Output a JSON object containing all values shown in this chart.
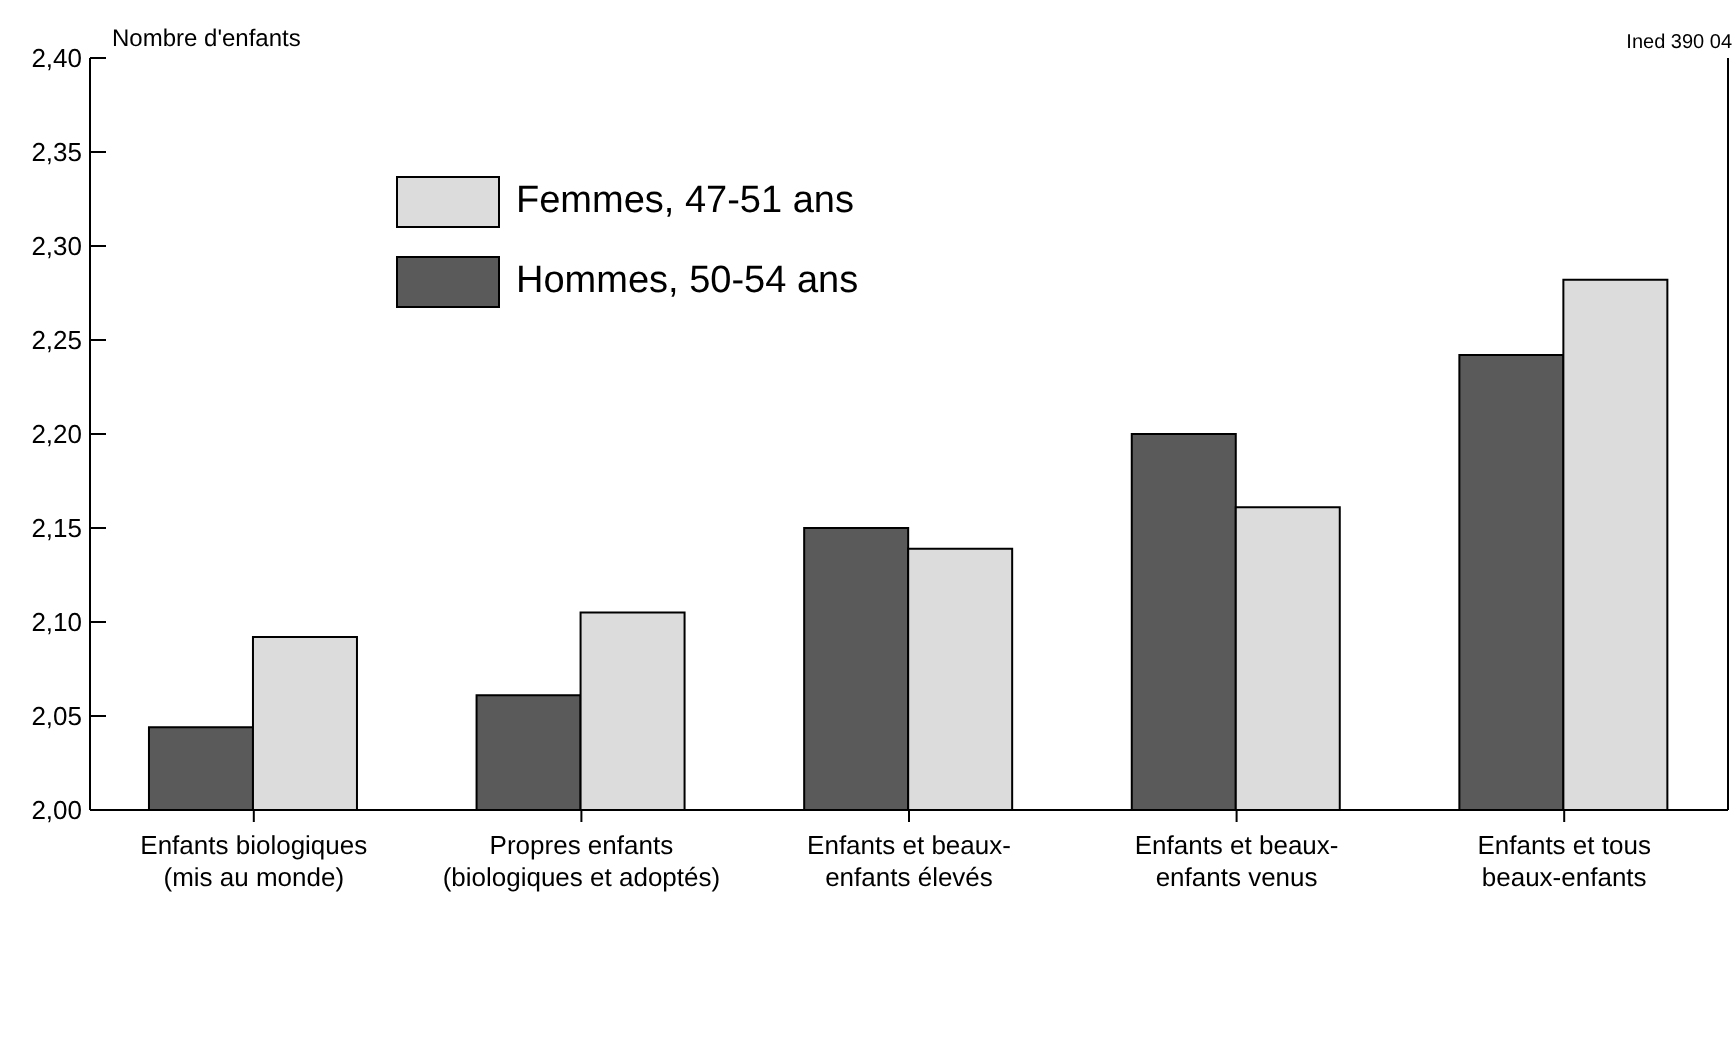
{
  "chart_data": {
    "type": "bar",
    "ylabel": "Nombre d'enfants",
    "annotations": [
      "Ined 390 04"
    ],
    "categories": [
      "Enfants biologiques\n(mis au monde)",
      "Propres enfants\n(biologiques et adoptés)",
      "Enfants et beaux-\nenfants élevés",
      "Enfants et beaux-\nenfants venus",
      "Enfants et tous\nbeaux-enfants"
    ],
    "series": [
      {
        "name": "Hommes, 50-54 ans",
        "color": "#5a5a5a",
        "values": [
          2.044,
          2.061,
          2.15,
          2.2,
          2.242
        ]
      },
      {
        "name": "Femmes, 47-51 ans",
        "color": "#dcdcdc",
        "values": [
          2.092,
          2.105,
          2.139,
          2.161,
          2.282
        ]
      }
    ],
    "ylim": [
      2,
      2.4
    ],
    "yticks": [
      {
        "value": 2,
        "label": "2,00"
      },
      {
        "value": 2.05,
        "label": "2,05"
      },
      {
        "value": 2.1,
        "label": "2,10"
      },
      {
        "value": 2.15,
        "label": "2,15"
      },
      {
        "value": 2.2,
        "label": "2,20"
      },
      {
        "value": 2.25,
        "label": "2,25"
      },
      {
        "value": 2.3,
        "label": "2,30"
      },
      {
        "value": 2.35,
        "label": "2,35"
      },
      {
        "value": 2.4,
        "label": "2,40"
      }
    ],
    "grid": false,
    "legend": "top left"
  }
}
